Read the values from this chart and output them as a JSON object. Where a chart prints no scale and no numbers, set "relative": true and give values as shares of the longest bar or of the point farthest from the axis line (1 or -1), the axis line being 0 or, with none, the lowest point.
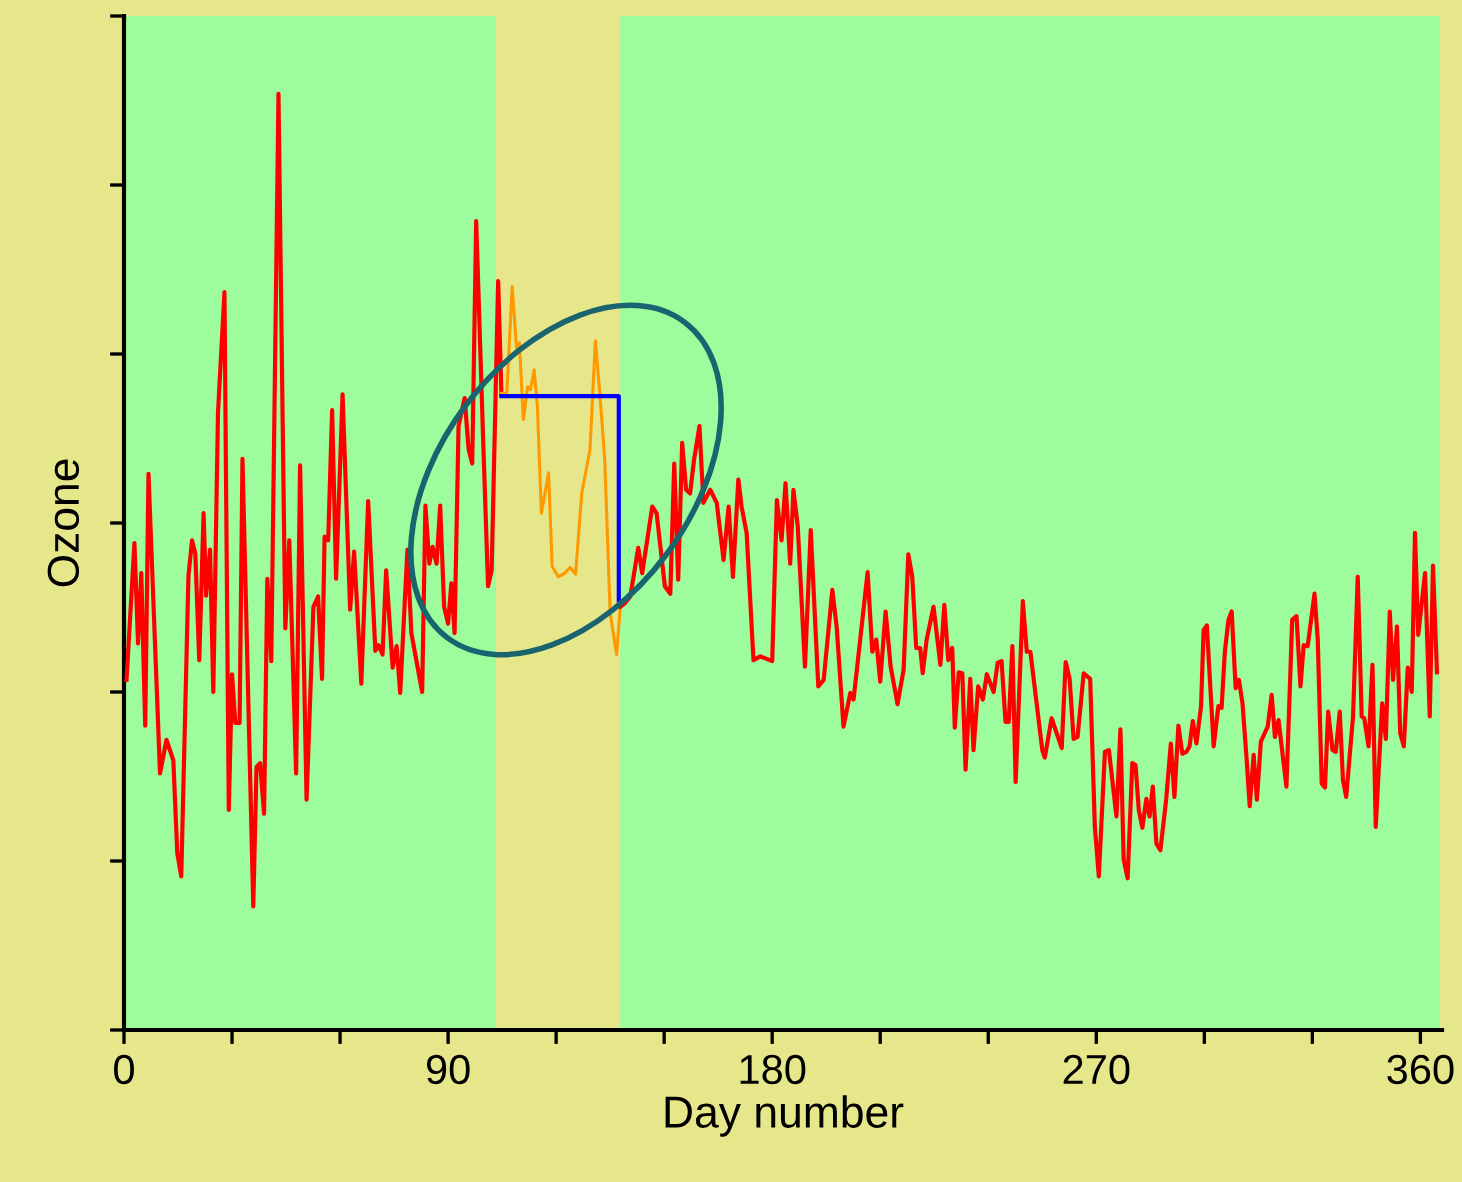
{
  "chart_data": {
    "type": "line",
    "relative": true,
    "xlabel": "Day number",
    "ylabel": "Ozone",
    "xlim": [
      0,
      366
    ],
    "xticks": [
      0,
      {
        "value": 30,
        "label": null
      },
      {
        "value": 60,
        "label": null
      },
      90,
      {
        "value": 120,
        "label": null
      },
      {
        "value": 150,
        "label": null
      },
      180,
      {
        "value": 210,
        "label": null
      },
      {
        "value": 240,
        "label": null
      },
      270,
      {
        "value": 300,
        "label": null
      },
      {
        "value": 330,
        "label": null
      },
      360
    ],
    "tick_labels": "x",
    "grid": false,
    "legend": false,
    "bands": [
      {
        "axis": "x",
        "from": 0,
        "to": 103.3,
        "color": "#9dfc9b"
      },
      {
        "axis": "x",
        "from": 137.8,
        "to": 365.4,
        "color": "#9dfc9b"
      }
    ],
    "series": [
      {
        "color": "#ff0000",
        "x": [
          0.7,
          2.9,
          3.9,
          4.8,
          5.9,
          6.8,
          10,
          11.8,
          13.7,
          14.8,
          15.9,
          17.9,
          18.9,
          19.8,
          20.9,
          22.1,
          22.8,
          23.9,
          24.8,
          26.1,
          27.9,
          29.1,
          30,
          30.9,
          32.1,
          32.9,
          35.9,
          36.8,
          37.8,
          38.9,
          39.8,
          40.9,
          42.9,
          44.8,
          45.9,
          47.8,
          48.9,
          50.7,
          52.6,
          53.9,
          55,
          55.7,
          56.7,
          57.8,
          58.9,
          60.7,
          62.8,
          63.9,
          65.9,
          67.8,
          69.8,
          70.7,
          71.8,
          72.8,
          74.6,
          75.7,
          76.7,
          78.7,
          79.8,
          82.8,
          83.7,
          84.8,
          85.7,
          86.8,
          87.8,
          88.9,
          90,
          90.9,
          91.8,
          92.9,
          94.6,
          95.7,
          96.7,
          97.8,
          99.8,
          101.1,
          102.1,
          103.9,
          104.8
        ],
        "values": [
          0.374,
          0.52,
          0.413,
          0.488,
          0.325,
          0.594,
          0.274,
          0.31,
          0.288,
          0.189,
          0.164,
          0.485,
          0.523,
          0.509,
          0.395,
          0.552,
          0.464,
          0.513,
          0.361,
          0.659,
          0.788,
          0.235,
          0.38,
          0.328,
          0.328,
          0.61,
          0.132,
          0.281,
          0.285,
          0.231,
          0.482,
          0.394,
          1.0,
          0.429,
          0.523,
          0.274,
          0.603,
          0.246,
          0.452,
          0.463,
          0.375,
          0.527,
          0.523,
          0.662,
          0.482,
          0.679,
          0.449,
          0.511,
          0.37,
          0.565,
          0.405,
          0.411,
          0.401,
          0.491,
          0.387,
          0.41,
          0.36,
          0.513,
          0.424,
          0.361,
          0.56,
          0.498,
          0.516,
          0.498,
          0.56,
          0.452,
          0.434,
          0.477,
          0.424,
          0.645,
          0.675,
          0.62,
          0.605,
          0.864,
          0.623,
          0.474,
          0.491,
          0.8,
          0.68
        ]
      },
      {
        "color": "#ff9900",
        "x": [
          104.8,
          106.3,
          107.8,
          109.1,
          109.8,
          110.9,
          112.1,
          112.9,
          113.9,
          114.8,
          115.9,
          117.9,
          118.9,
          120.6,
          122.4,
          123.9,
          125.4,
          127.1,
          129.4,
          130.9,
          132.2,
          133.5,
          135,
          136.8,
          137.8
        ],
        "values": [
          0.68,
          0.68,
          0.794,
          0.723,
          0.734,
          0.652,
          0.687,
          0.684,
          0.705,
          0.666,
          0.552,
          0.595,
          0.495,
          0.484,
          0.488,
          0.494,
          0.487,
          0.573,
          0.62,
          0.736,
          0.677,
          0.609,
          0.445,
          0.401,
          0.452
        ]
      },
      {
        "color": "#ff0000",
        "x": [
          137.8,
          139.1,
          140.6,
          142.8,
          143.9,
          146.7,
          147.9,
          150.2,
          151.7,
          152.8,
          153.9,
          155,
          156.1,
          157.2,
          158.3,
          159.8,
          160.9,
          162.8,
          164.6,
          166.5,
          167.9,
          169.1,
          170.6,
          171.5,
          172.9,
          174.8,
          176.7,
          180,
          181.3,
          182.6,
          183.7,
          185,
          185.9,
          187.1,
          189.1,
          190.7,
          192.8,
          194.3,
          196.7,
          197.9,
          199.8,
          201.7,
          202.6,
          206.5,
          207.8,
          208.9,
          210,
          211.5,
          212.9,
          214.8,
          216.5,
          217.8,
          218.9,
          220,
          221.1,
          221.8,
          222.9,
          224.8,
          226.7,
          227.8,
          228.9,
          230,
          230.7,
          231.8,
          232.8,
          233.7,
          235,
          235.9,
          237.2,
          238.5,
          239.6,
          241.5,
          242.6,
          243.7,
          244.8,
          245.7,
          246.7,
          247.6,
          249.6,
          250.7,
          251.7,
          255,
          255.7,
          257.6,
          260.4,
          261.5,
          262.6,
          263.7,
          264.8,
          266.5,
          268.3,
          269.6,
          270.7,
          272.4,
          273.5,
          275.6,
          276.7,
          277.6,
          278.7,
          280,
          280.9,
          281.8,
          282.8,
          283.9,
          284.8,
          285.7,
          286.7,
          287.8,
          289.4,
          290.7,
          291.7,
          292.8,
          293.9,
          295,
          295.9,
          296.8,
          297.8,
          299.1,
          299.8,
          300.7,
          302.6,
          303.9,
          304.8,
          305.7,
          306.7,
          307.6,
          308.7,
          309.6,
          310.6,
          311.7,
          312.6,
          313.7,
          314.6,
          315.7,
          317.6,
          318.7,
          319.6,
          320.6,
          322.8,
          324.4,
          325.6,
          326.7,
          327.6,
          328.7,
          330.6,
          331.5,
          332.6,
          333.5,
          334.4,
          335.6,
          336.5,
          337.6,
          338.5,
          339.4,
          341.3,
          342.6,
          343.7,
          344.4,
          345.6,
          346.7,
          347.6,
          349.4,
          350.4,
          351.5,
          352.4,
          353.5,
          354.4,
          355.4,
          356.5,
          357.6,
          358.5,
          359.4,
          361.3,
          362.6,
          363.5,
          364.6
        ],
        "values": [
          0.452,
          0.456,
          0.463,
          0.515,
          0.488,
          0.559,
          0.552,
          0.474,
          0.466,
          0.605,
          0.481,
          0.627,
          0.577,
          0.573,
          0.609,
          0.645,
          0.563,
          0.577,
          0.563,
          0.502,
          0.559,
          0.484,
          0.588,
          0.559,
          0.531,
          0.395,
          0.399,
          0.394,
          0.566,
          0.523,
          0.584,
          0.498,
          0.577,
          0.538,
          0.388,
          0.534,
          0.367,
          0.374,
          0.47,
          0.431,
          0.324,
          0.36,
          0.353,
          0.489,
          0.404,
          0.417,
          0.372,
          0.447,
          0.388,
          0.348,
          0.385,
          0.508,
          0.484,
          0.408,
          0.408,
          0.381,
          0.417,
          0.452,
          0.39,
          0.454,
          0.395,
          0.408,
          0.323,
          0.382,
          0.381,
          0.278,
          0.375,
          0.299,
          0.367,
          0.353,
          0.38,
          0.361,
          0.392,
          0.394,
          0.329,
          0.329,
          0.41,
          0.265,
          0.458,
          0.404,
          0.404,
          0.299,
          0.291,
          0.333,
          0.301,
          0.393,
          0.375,
          0.311,
          0.313,
          0.381,
          0.375,
          0.217,
          0.164,
          0.297,
          0.299,
          0.228,
          0.321,
          0.182,
          0.162,
          0.285,
          0.283,
          0.235,
          0.216,
          0.247,
          0.228,
          0.26,
          0.199,
          0.192,
          0.246,
          0.306,
          0.249,
          0.325,
          0.295,
          0.297,
          0.303,
          0.33,
          0.306,
          0.346,
          0.427,
          0.432,
          0.303,
          0.346,
          0.344,
          0.404,
          0.438,
          0.447,
          0.365,
          0.374,
          0.349,
          0.292,
          0.239,
          0.294,
          0.246,
          0.308,
          0.324,
          0.358,
          0.313,
          0.331,
          0.26,
          0.438,
          0.442,
          0.367,
          0.411,
          0.41,
          0.466,
          0.417,
          0.263,
          0.259,
          0.34,
          0.299,
          0.297,
          0.34,
          0.267,
          0.249,
          0.335,
          0.484,
          0.335,
          0.333,
          0.303,
          0.39,
          0.217,
          0.349,
          0.311,
          0.447,
          0.374,
          0.431,
          0.317,
          0.303,
          0.387,
          0.361,
          0.531,
          0.422,
          0.488,
          0.335,
          0.496,
          0.382
        ]
      },
      {
        "color": "#0000ff",
        "x": [
          104.8,
          137.4,
          137.4
        ],
        "values": [
          0.677,
          0.677,
          0.459
        ]
      }
    ]
  }
}
